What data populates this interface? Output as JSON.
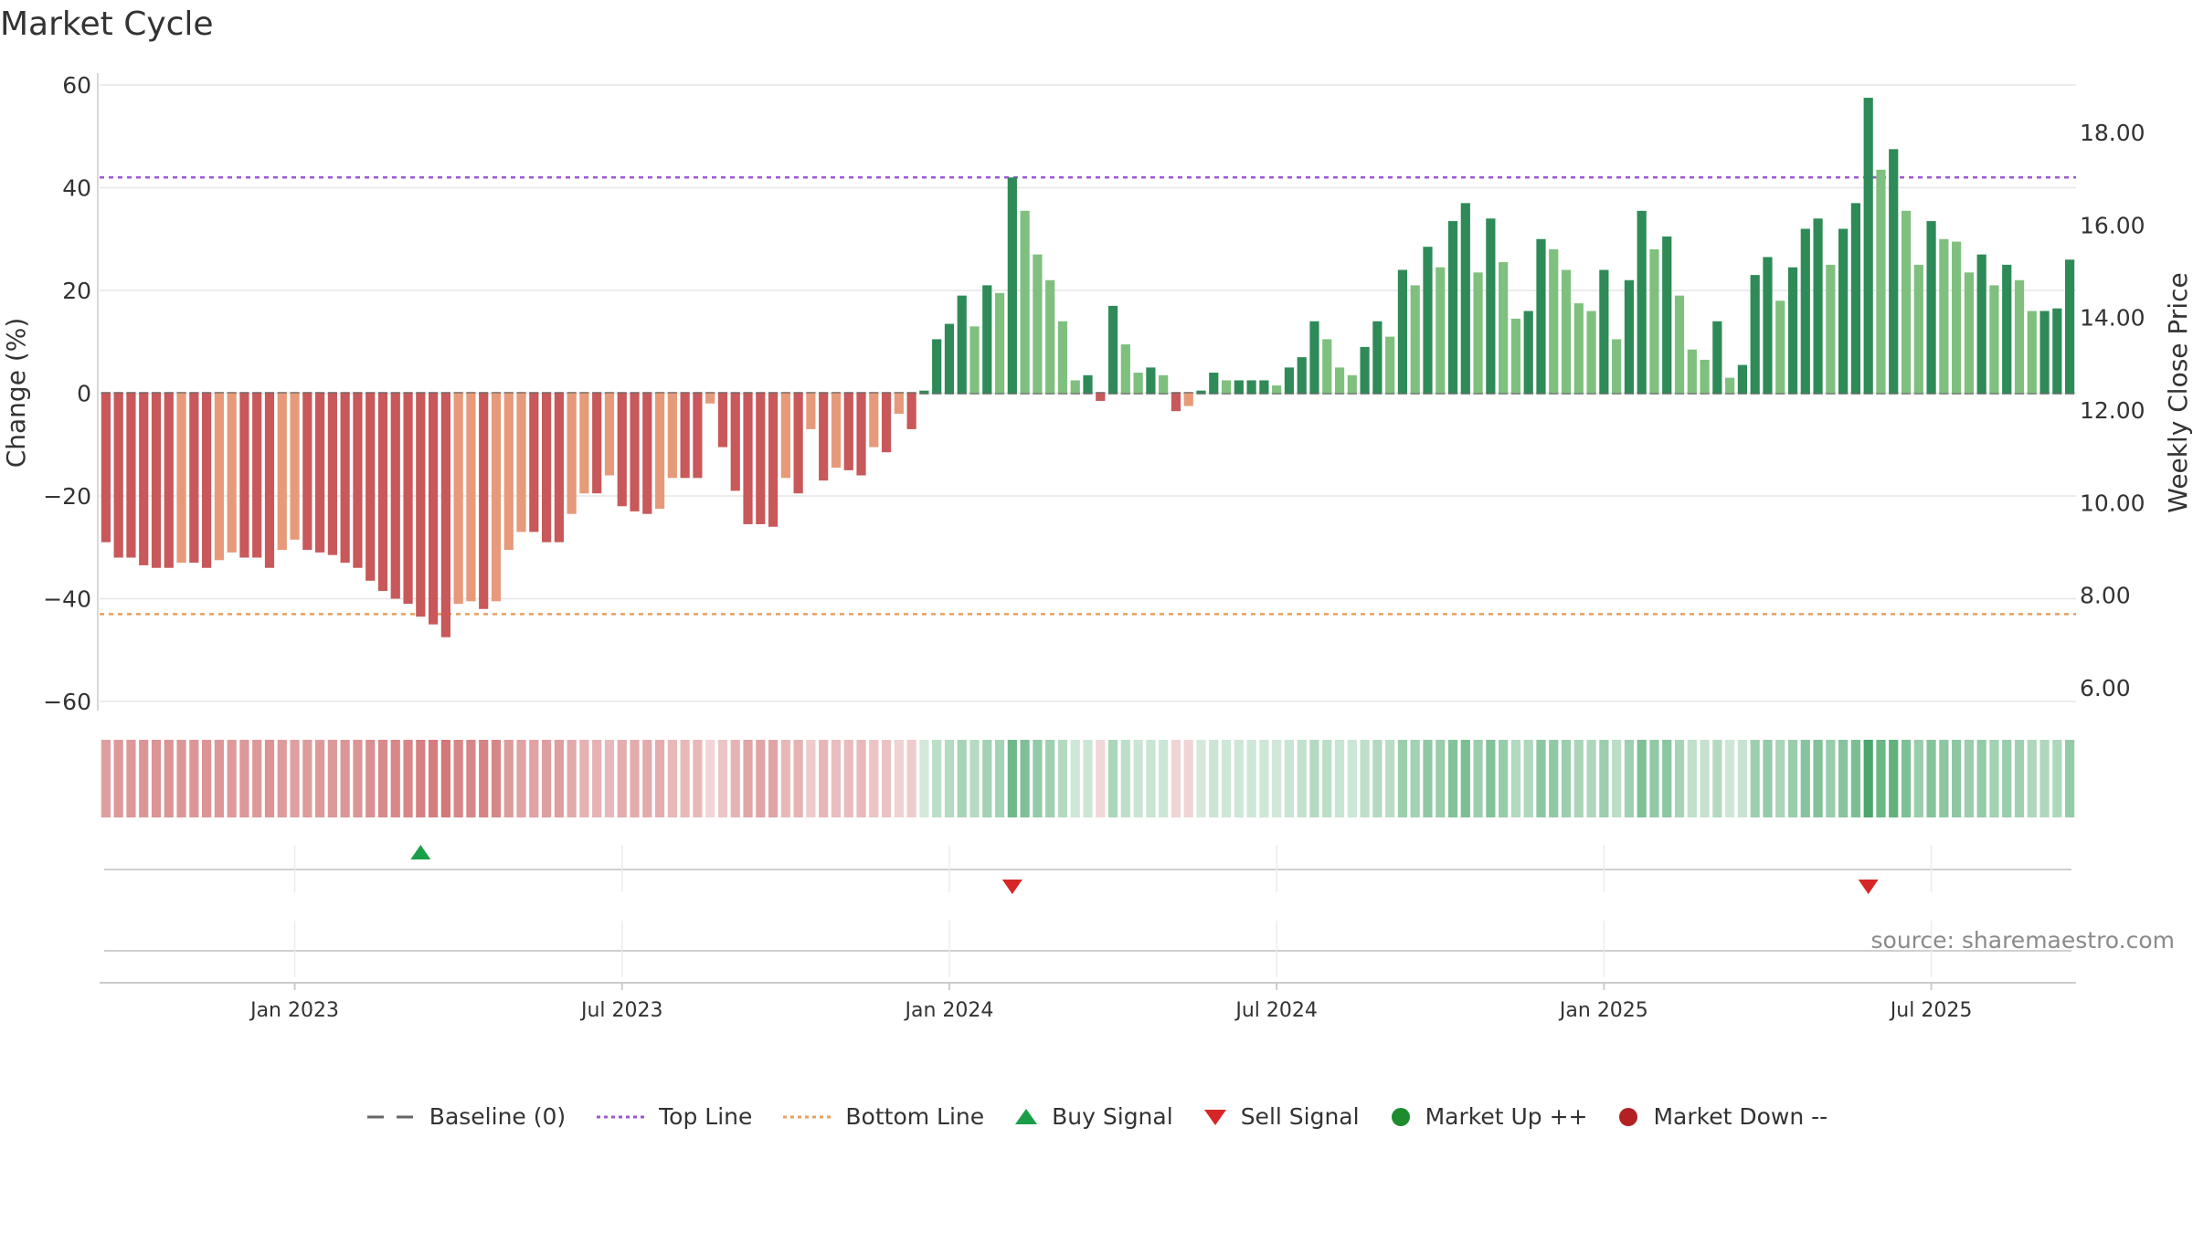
{
  "title": "Market Cycle",
  "source_text": "source: sharemaestro.com",
  "colors": {
    "strong_down": "#c8585a",
    "weak_down": "#e69a7a",
    "strong_up": "#2e8b57",
    "weak_up": "#7fc07f",
    "top_line": "#9b59d0",
    "bottom_line": "#e8a060",
    "buy": "#1a9e4a",
    "sell": "#d62728",
    "market_up": "#1e8c2e",
    "market_down": "#b22222",
    "baseline": "#666666"
  },
  "legend": [
    {
      "label": "Baseline (0)",
      "icon": "dash-line-icon",
      "color": "#666666"
    },
    {
      "label": "Top Line",
      "icon": "dotted-line-icon",
      "color": "#9b59d0"
    },
    {
      "label": "Bottom Line",
      "icon": "dotted-line-icon",
      "color": "#e8a060"
    },
    {
      "label": "Buy Signal",
      "icon": "triangle-up-icon",
      "color": "#1a9e4a"
    },
    {
      "label": "Sell Signal",
      "icon": "triangle-down-icon",
      "color": "#d62728"
    },
    {
      "label": "Market Up ++",
      "icon": "circle-icon",
      "color": "#1e8c2e"
    },
    {
      "label": "Market Down --",
      "icon": "circle-icon",
      "color": "#b22222"
    }
  ],
  "chart_data": {
    "type": "bar",
    "title": "Market Cycle",
    "ylabel": "Change (%)",
    "y2label": "Weekly Close Price",
    "ylim": [
      -60,
      60
    ],
    "y_ticks": [
      60,
      40,
      20,
      0,
      -20,
      -40,
      -60
    ],
    "y_tick_labels": [
      "60",
      "40",
      "20",
      "0",
      "−20",
      "−40",
      "−60"
    ],
    "y2lim": [
      6,
      18
    ],
    "y2_ticks": [
      18,
      16,
      14,
      12,
      10,
      8,
      6
    ],
    "y2_tick_labels": [
      "18.00",
      "16.00",
      "14.00",
      "12.00",
      "10.00",
      "8.00",
      "6.00"
    ],
    "x_tick_labels": [
      "Jan 2023",
      "Jul 2023",
      "Jan 2024",
      "Jul 2024",
      "Jan 2025",
      "Jul 2025"
    ],
    "x_tick_positions": [
      15,
      41,
      67,
      93,
      119,
      145
    ],
    "top_line": 42,
    "bottom_line": -43,
    "grid": true,
    "legend_position": "bottom",
    "values": [
      -29,
      -32,
      -32,
      -33.5,
      -34,
      -34,
      -33,
      -33,
      -34,
      -32.5,
      -31,
      -32,
      -32,
      -34,
      -30.5,
      -28.5,
      -30.5,
      -31,
      -31.5,
      -33,
      -34,
      -36.5,
      -38.5,
      -40,
      -41,
      -43.5,
      -45,
      -47.5,
      -41,
      -40.5,
      -42,
      -40.5,
      -30.5,
      -27,
      -27,
      -29,
      -29,
      -23.5,
      -19.5,
      -19.5,
      -16,
      -22,
      -23,
      -23.5,
      -22.5,
      -16.5,
      -16.5,
      -16.5,
      -2,
      -10.5,
      -19,
      -25.5,
      -25.5,
      -26,
      -16.5,
      -19.5,
      -7,
      -17,
      -14.5,
      -15,
      -16,
      -10.5,
      -11.5,
      -4,
      -7,
      0.5,
      10.5,
      13.5,
      19,
      13,
      21,
      19.5,
      42,
      35.5,
      27,
      22,
      14,
      2.5,
      3.5,
      -1.5,
      17,
      9.5,
      4,
      5,
      3.5,
      -3.5,
      -2.5,
      0.5,
      4,
      2.5,
      2.5,
      2.5,
      2.5,
      1.5,
      5,
      7,
      14,
      10.5,
      5,
      3.5,
      9,
      14,
      11,
      24,
      21,
      28.5,
      24.5,
      33.5,
      37,
      23.5,
      34,
      25.5,
      14.5,
      16,
      30,
      28,
      24,
      17.5,
      16,
      24,
      10.5,
      22,
      35.5,
      28,
      30.5,
      19,
      8.5,
      6.5,
      14,
      3,
      5.5,
      23,
      26.5,
      18,
      24.5,
      32,
      34,
      25,
      32,
      37,
      57.5,
      43.5,
      47.5,
      35.5,
      25,
      33.5,
      30,
      29.5,
      23.5,
      27,
      21,
      25,
      22,
      16,
      16,
      16.5,
      26
    ],
    "signals": [
      {
        "type": "buy",
        "index": 25
      },
      {
        "type": "sell",
        "index": 72
      },
      {
        "type": "sell",
        "index": 140
      }
    ]
  }
}
